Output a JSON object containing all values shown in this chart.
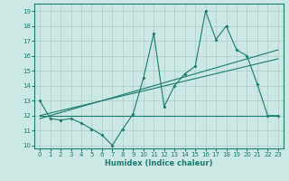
{
  "xlabel": "Humidex (Indice chaleur)",
  "ylabel": "",
  "bg_color": "#cce8e4",
  "grid_color": "#aaccca",
  "line_color": "#1a7a6e",
  "xlim": [
    -0.5,
    23.5
  ],
  "ylim": [
    9.8,
    19.5
  ],
  "yticks": [
    10,
    11,
    12,
    13,
    14,
    15,
    16,
    17,
    18,
    19
  ],
  "xticks": [
    0,
    1,
    2,
    3,
    4,
    5,
    6,
    7,
    8,
    9,
    10,
    11,
    12,
    13,
    14,
    15,
    16,
    17,
    18,
    19,
    20,
    21,
    22,
    23
  ],
  "series1": {
    "x": [
      0,
      1,
      2,
      3,
      4,
      5,
      6,
      7,
      8,
      9,
      10,
      11,
      12,
      13,
      14,
      15,
      16,
      17,
      18,
      19,
      20,
      21,
      22,
      23
    ],
    "y": [
      13,
      11.8,
      11.7,
      11.8,
      11.5,
      11.1,
      10.7,
      10.0,
      11.1,
      12.1,
      14.5,
      17.5,
      12.6,
      14.0,
      14.8,
      15.3,
      19.0,
      17.1,
      18.0,
      16.4,
      16.0,
      14.1,
      12.0,
      12.0
    ]
  },
  "series2_linear1": {
    "x": [
      0,
      23
    ],
    "y": [
      12.0,
      15.8
    ]
  },
  "series2_linear2": {
    "x": [
      0,
      23
    ],
    "y": [
      11.8,
      16.4
    ]
  },
  "series3_flat": {
    "x": [
      0,
      23
    ],
    "y": [
      12.0,
      12.0
    ]
  }
}
